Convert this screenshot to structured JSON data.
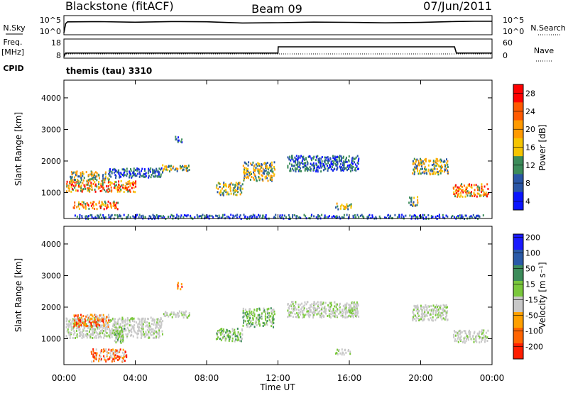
{
  "header": {
    "station": "Blackstone (fitACF)",
    "beam": "Beam 09",
    "date": "07/Jun/2011"
  },
  "top_panels": {
    "nsky_label": "N.Sky",
    "nsky_ticks": [
      "10^5",
      "10^0"
    ],
    "nsearch_label": "N.Search",
    "nsearch_ticks": [
      "10^5",
      "10^0"
    ],
    "freq_label": "Freq.",
    "freq_unit": "[MHz]",
    "freq_ticks": [
      "18",
      "8"
    ],
    "nave_label": "Nave",
    "nave_ticks": [
      "60",
      "0"
    ],
    "cpid_label": "CPID",
    "cpid_value": "themis (tau) 3310"
  },
  "axes": {
    "ylabel": "Slant Range [km]",
    "yticks": [
      "4000",
      "3000",
      "2000",
      "1000"
    ],
    "xlabel": "Time UT",
    "xticks": [
      "00:00",
      "04:00",
      "08:00",
      "12:00",
      "16:00",
      "20:00",
      "00:00"
    ]
  },
  "power_scale": {
    "label": "Power [dB]",
    "ticks": [
      "28",
      "24",
      "20",
      "16",
      "12",
      "8",
      "4"
    ],
    "colors": [
      "#ff0000",
      "#ff5a00",
      "#ff9a00",
      "#f6c500",
      "#3c8c5a",
      "#2a56a6",
      "#0a14ff"
    ]
  },
  "velocity_scale": {
    "label": "Velocity [m s⁻¹]",
    "ticks": [
      "200",
      "100",
      "50",
      "15",
      "-15",
      "-50",
      "-100",
      "-200"
    ],
    "colors": [
      "#1a1aff",
      "#2a5aa8",
      "#3c8c5a",
      "#7ac83c",
      "#c8c8c8",
      "#ffa000",
      "#ff6400",
      "#ff1e00"
    ]
  },
  "chart_data": [
    {
      "type": "line",
      "title": "N.Sky / N.Search",
      "x_unit": "hours UT",
      "xlim": [
        0,
        24
      ],
      "series": [
        {
          "name": "N.Sky",
          "x": [
            0,
            0.1,
            0.2,
            2,
            4,
            6,
            8,
            10,
            12,
            14,
            16,
            18,
            20,
            22,
            23,
            24
          ],
          "y": [
            0.2,
            3.0,
            3.4,
            3.5,
            3.4,
            3.6,
            3.4,
            3.3,
            3.3,
            3.4,
            3.3,
            3.3,
            3.4,
            3.5,
            3.7,
            3.6
          ]
        }
      ]
    },
    {
      "type": "line",
      "title": "Freq / Nave",
      "x_unit": "hours UT",
      "xlim": [
        0,
        24
      ],
      "series": [
        {
          "name": "Freq.",
          "x": [
            0,
            0.1,
            12,
            12.01,
            21.9,
            22,
            24
          ],
          "y": [
            8.5,
            10.5,
            10.5,
            14.0,
            14.0,
            10.5,
            10.5
          ]
        },
        {
          "name": "Nave",
          "x": [
            0,
            24
          ],
          "y": [
            12,
            12
          ]
        }
      ]
    },
    {
      "type": "heatmap",
      "title": "Power [dB]",
      "xlabel": "Time UT",
      "ylabel": "Slant Range [km]",
      "xlim": [
        0,
        24
      ],
      "ylim": [
        180,
        4560
      ],
      "scale": [
        0,
        30
      ],
      "regions": [
        {
          "t": [
            0.1,
            4.0
          ],
          "r": [
            1050,
            1400
          ],
          "level": "strong"
        },
        {
          "t": [
            0.3,
            2.5
          ],
          "r": [
            1400,
            1700
          ],
          "level": "medium"
        },
        {
          "t": [
            0.5,
            3.0
          ],
          "r": [
            500,
            750
          ],
          "level": "strong"
        },
        {
          "t": [
            2.5,
            5.5
          ],
          "r": [
            1500,
            1800
          ],
          "level": "weak"
        },
        {
          "t": [
            5.5,
            7.0
          ],
          "r": [
            1700,
            1900
          ],
          "level": "medium"
        },
        {
          "t": [
            6.2,
            6.6
          ],
          "r": [
            2600,
            2800
          ],
          "level": "weak"
        },
        {
          "t": [
            8.5,
            10.0
          ],
          "r": [
            950,
            1350
          ],
          "level": "medium"
        },
        {
          "t": [
            10.0,
            11.8
          ],
          "r": [
            1400,
            2000
          ],
          "level": "medium"
        },
        {
          "t": [
            12.5,
            16.5
          ],
          "r": [
            1700,
            2200
          ],
          "level": "weak"
        },
        {
          "t": [
            15.2,
            16.1
          ],
          "r": [
            500,
            700
          ],
          "level": "medium"
        },
        {
          "t": [
            19.3,
            19.8
          ],
          "r": [
            600,
            900
          ],
          "level": "medium"
        },
        {
          "t": [
            19.5,
            21.5
          ],
          "r": [
            1600,
            2100
          ],
          "level": "medium"
        },
        {
          "t": [
            21.8,
            23.8
          ],
          "r": [
            900,
            1300
          ],
          "level": "strong"
        },
        {
          "t": [
            0.5,
            23.5
          ],
          "r": [
            200,
            330
          ],
          "level": "weak"
        }
      ]
    },
    {
      "type": "heatmap",
      "title": "Velocity [m s⁻¹]",
      "xlabel": "Time UT",
      "ylabel": "Slant Range [km]",
      "xlim": [
        0,
        24
      ],
      "ylim": [
        180,
        4560
      ],
      "scale": [
        -200,
        200
      ],
      "regions": [
        {
          "t": [
            0.1,
            5.5
          ],
          "r": [
            1050,
            1700
          ],
          "level": "near-zero"
        },
        {
          "t": [
            0.5,
            2.5
          ],
          "r": [
            1400,
            1800
          ],
          "level": "negative"
        },
        {
          "t": [
            1.5,
            3.5
          ],
          "r": [
            300,
            700
          ],
          "level": "negative"
        },
        {
          "t": [
            2.8,
            3.4
          ],
          "r": [
            900,
            1400
          ],
          "level": "positive-low"
        },
        {
          "t": [
            5.5,
            7.0
          ],
          "r": [
            1700,
            1900
          ],
          "level": "near-zero"
        },
        {
          "t": [
            6.3,
            6.6
          ],
          "r": [
            2600,
            2800
          ],
          "level": "negative"
        },
        {
          "t": [
            8.5,
            10.0
          ],
          "r": [
            950,
            1350
          ],
          "level": "positive-low"
        },
        {
          "t": [
            10.0,
            11.8
          ],
          "r": [
            1400,
            2000
          ],
          "level": "positive-low"
        },
        {
          "t": [
            12.5,
            16.5
          ],
          "r": [
            1700,
            2200
          ],
          "level": "near-zero"
        },
        {
          "t": [
            15.2,
            16.1
          ],
          "r": [
            500,
            700
          ],
          "level": "near-zero"
        },
        {
          "t": [
            19.5,
            21.5
          ],
          "r": [
            1600,
            2100
          ],
          "level": "near-zero"
        },
        {
          "t": [
            21.8,
            23.8
          ],
          "r": [
            900,
            1300
          ],
          "level": "near-zero"
        }
      ]
    }
  ]
}
